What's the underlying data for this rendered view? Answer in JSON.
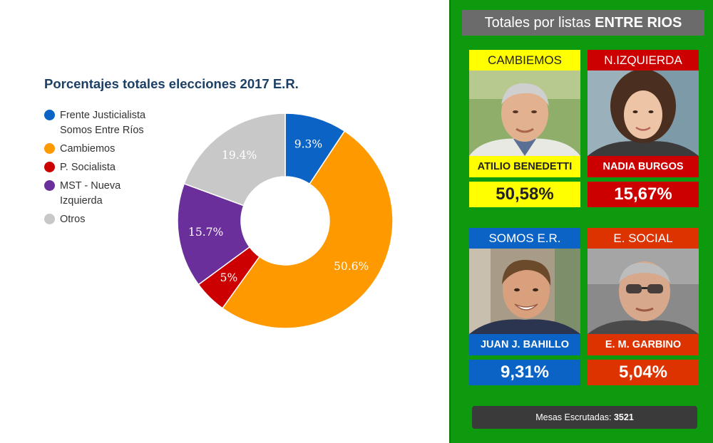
{
  "chart_data": {
    "type": "pie",
    "title": "Porcentajes totales elecciones 2017 E.R.",
    "legend_position": "left",
    "categories": [
      "Frente Justicialista Somos Entre Ríos",
      "Cambiemos",
      "P. Socialista",
      "MST - Nueva Izquierda",
      "Otros"
    ],
    "values": [
      9.3,
      50.6,
      5,
      15.7,
      19.4
    ],
    "labels": [
      "9.3%",
      "50.6%",
      "5%",
      "15.7%",
      "19.4%"
    ],
    "colors": [
      "#0b63c5",
      "#ff9900",
      "#cc0000",
      "#6a2f9a",
      "#c8c8c8"
    ]
  },
  "legend": [
    {
      "lines": [
        "Frente Justicialista",
        "Somos Entre Ríos"
      ],
      "color": "#0b63c5"
    },
    {
      "lines": [
        "Cambiemos"
      ],
      "color": "#ff9900"
    },
    {
      "lines": [
        "P. Socialista"
      ],
      "color": "#cc0000"
    },
    {
      "lines": [
        "MST - Nueva",
        "Izquierda"
      ],
      "color": "#6a2f9a"
    },
    {
      "lines": [
        "Otros"
      ],
      "color": "#c8c8c8"
    }
  ],
  "results": {
    "header_prefix": "Totales por listas",
    "header_region": "ENTRE RIOS",
    "cards": [
      {
        "party": "CAMBIEMOS",
        "candidate": "ATILIO BENEDETTI",
        "percent": "50,58%",
        "bg": "#ffff00",
        "fg": "#222222",
        "photo": "portrait-older-man"
      },
      {
        "party": "N.IZQUIERDA",
        "candidate": "NADIA BURGOS",
        "percent": "15,67%",
        "bg": "#cc0000",
        "fg": "#ffffff",
        "photo": "portrait-young-woman"
      },
      {
        "party": "SOMOS E.R.",
        "candidate": "JUAN J. BAHILLO",
        "percent": "9,31%",
        "bg": "#0b63c5",
        "fg": "#ffffff",
        "photo": "portrait-smiling-man"
      },
      {
        "party": "E. SOCIAL",
        "candidate": "E. M. GARBINO",
        "percent": "5,04%",
        "bg": "#dd3300",
        "fg": "#ffffff",
        "photo": "portrait-man-glasses"
      }
    ],
    "mesas_label": "Mesas Escrutadas:",
    "mesas_value": "3521"
  }
}
